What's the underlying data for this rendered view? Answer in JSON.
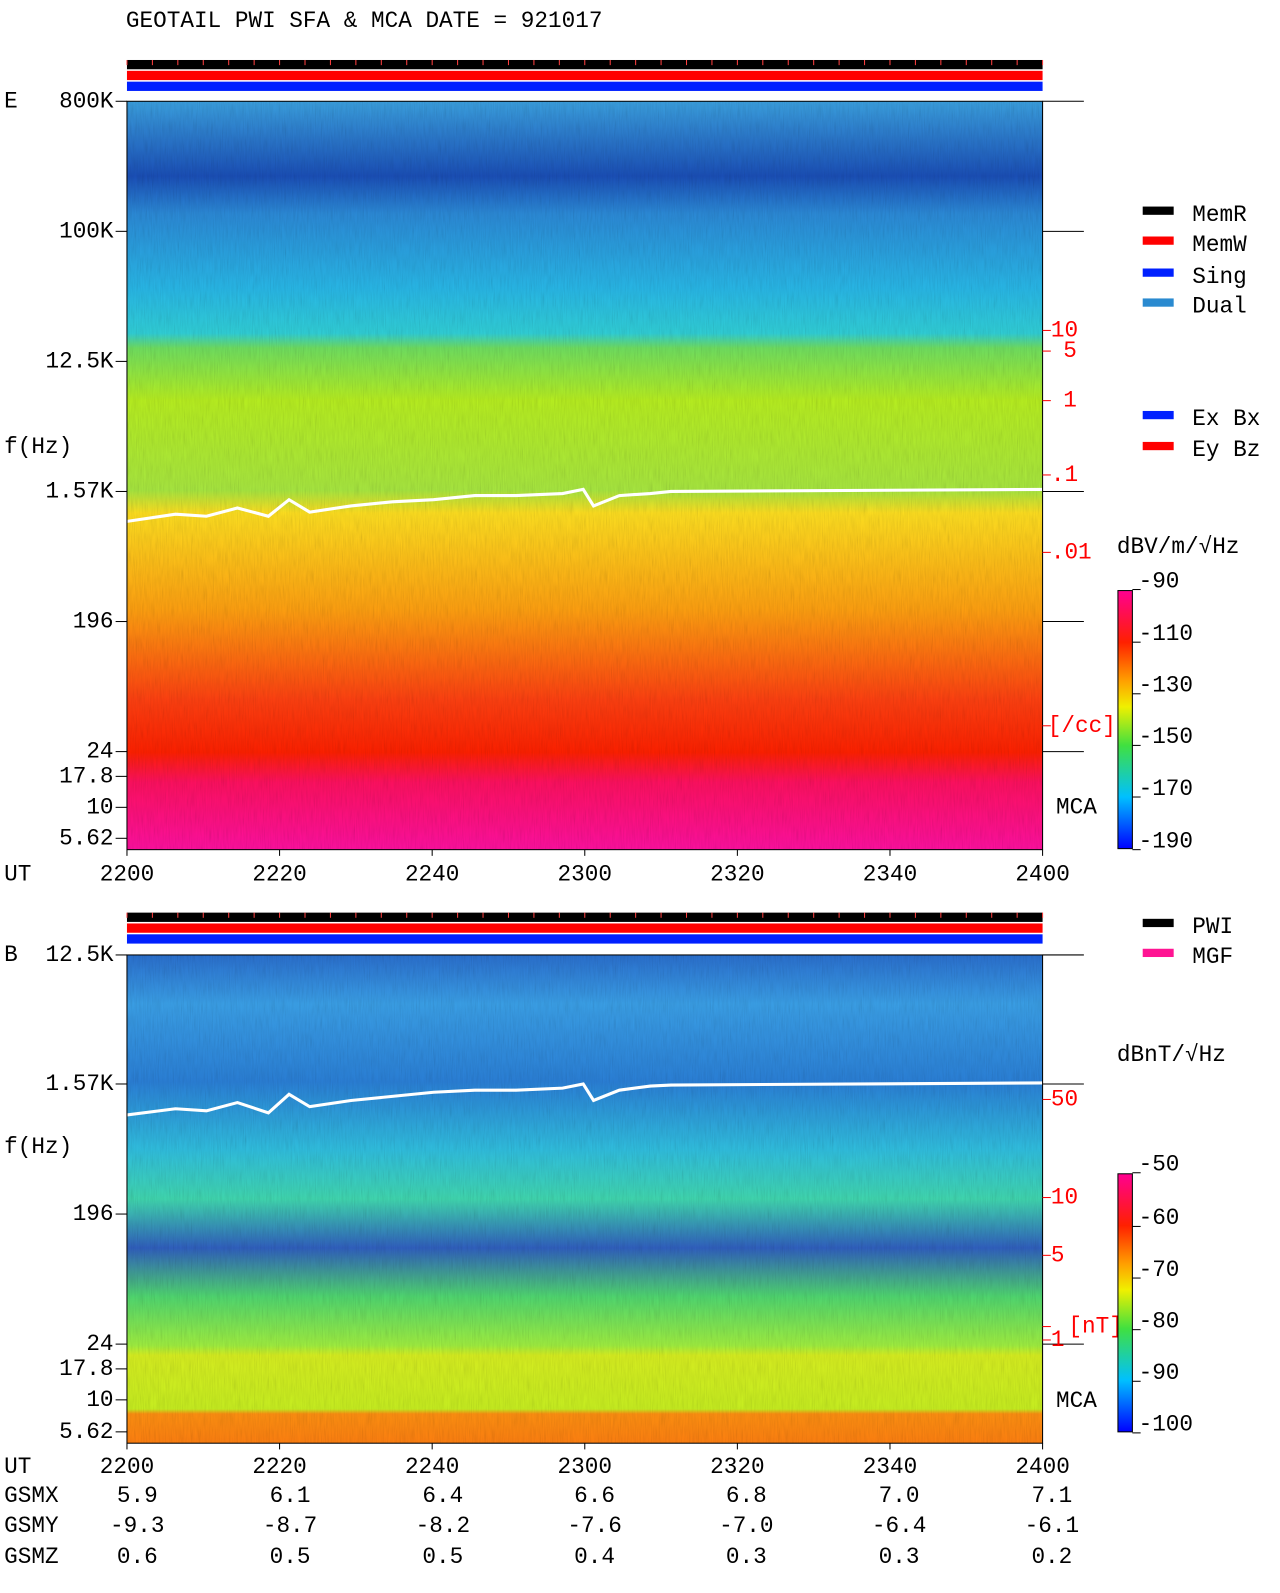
{
  "header": {
    "title": "GEOTAIL  PWI SFA & MCA   DATE = 921017"
  },
  "panels": [
    {
      "label": "E",
      "y_axis_label": "f(Hz)",
      "y_ticks": [
        "800K",
        "100K",
        "12.5K",
        "1.57K",
        "196",
        "24",
        "17.8",
        "10",
        "5.62"
      ],
      "right_ticks": [
        "10",
        "5",
        "1",
        ".1",
        ".01",
        "[/cc]"
      ],
      "mca_label": "MCA",
      "legend": [
        "MemR",
        "MemW",
        "Sing",
        "Dual"
      ],
      "legend2": [
        "Ex Bx",
        "Ey Bz"
      ],
      "colorbar": {
        "unit": "dBV/m/√Hz",
        "ticks": [
          "-90",
          "-110",
          "-130",
          "-150",
          "-170",
          "-190"
        ]
      },
      "x_axis_label": "UT",
      "x_ticks": [
        "2200",
        "2220",
        "2240",
        "2300",
        "2320",
        "2340",
        "2400"
      ]
    },
    {
      "label": "B",
      "y_axis_label": "f(Hz)",
      "y_ticks": [
        "12.5K",
        "1.57K",
        "196",
        "24",
        "17.8",
        "10",
        "5.62"
      ],
      "right_ticks": [
        "50",
        "10",
        "5",
        "1",
        "[nT]"
      ],
      "mca_label": "MCA",
      "legend": [
        "PWI",
        "MGF"
      ],
      "colorbar": {
        "unit": "dBnT/√Hz",
        "ticks": [
          "-50",
          "-60",
          "-70",
          "-80",
          "-90",
          "-100"
        ]
      },
      "x_axis_label": "UT",
      "x_ticks": [
        "2200",
        "2220",
        "2240",
        "2300",
        "2320",
        "2340",
        "2400"
      ]
    }
  ],
  "orbit": {
    "rows": [
      {
        "label": "GSMX",
        "values": [
          "5.9",
          "6.1",
          "6.4",
          "6.6",
          "6.8",
          "7.0",
          "7.1"
        ]
      },
      {
        "label": "GSMY",
        "values": [
          "-9.3",
          "-8.7",
          "-8.2",
          "-7.6",
          "-7.0",
          "-6.4",
          "-6.1"
        ]
      },
      {
        "label": "GSMZ",
        "values": [
          "0.6",
          "0.5",
          "0.5",
          "0.4",
          "0.3",
          "0.3",
          "0.2"
        ]
      }
    ]
  }
}
